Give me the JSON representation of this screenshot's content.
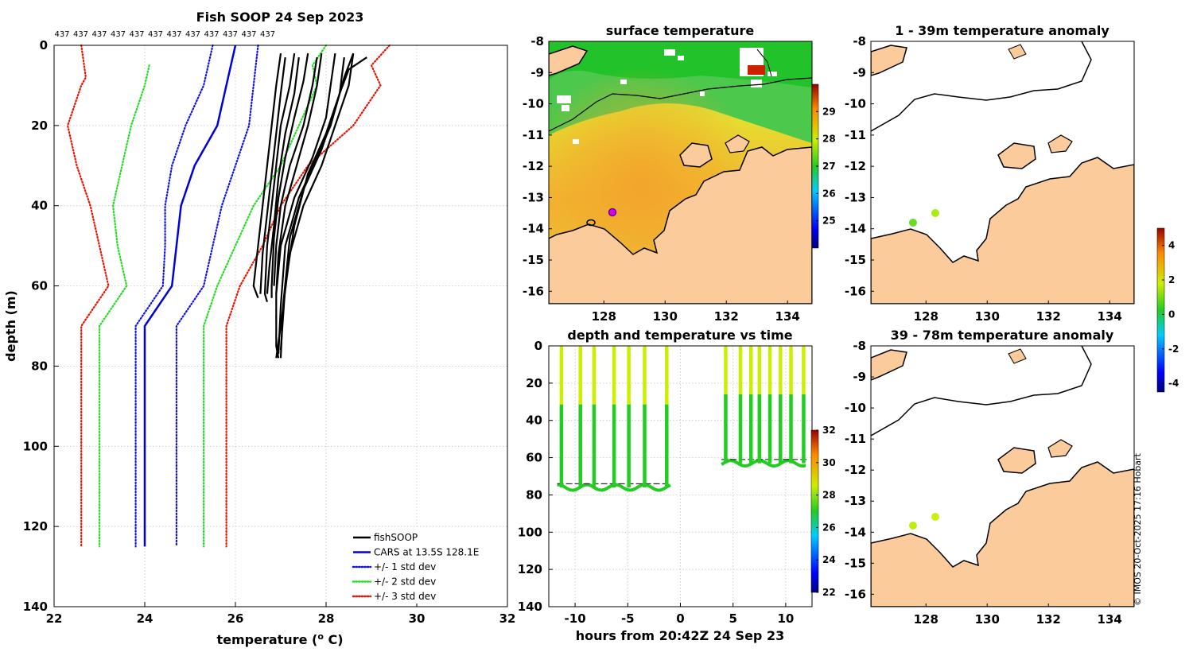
{
  "credit": "© IMOS 20-Oct-2025 17:16 Hobart",
  "colors": {
    "fishsoop": "#000000",
    "cars": "#0000dd",
    "std1": "#1010ee",
    "std2": "#22dd22",
    "std3": "#ee1100",
    "land": "#fbcb9b",
    "track_hot": "#ccee00",
    "track_cool": "#22cc22"
  },
  "chart_data": [
    {
      "id": "profile",
      "type": "line",
      "title": "Fish SOOP 24 Sep 2023",
      "xlabel": "temperature (o C)",
      "xlabel_main": "temperature (",
      "xlabel_sup": "o",
      "xlabel_end": " C)",
      "ylabel": "depth (m)",
      "xlim": [
        22,
        32
      ],
      "ylim": [
        0,
        140
      ],
      "y_reversed": true,
      "xticks": [
        "22",
        "24",
        "26",
        "28",
        "30",
        "32"
      ],
      "yticks": [
        "0",
        "20",
        "40",
        "60",
        "80",
        "100",
        "120",
        "140"
      ],
      "top_labels": [
        "437",
        "437",
        "437",
        "437",
        "437",
        "437",
        "437",
        "437",
        "437",
        "437",
        "437",
        "437"
      ],
      "legend": [
        {
          "label": "fishSOOP",
          "style": "solid",
          "color": "#000000"
        },
        {
          "label": "CARS at 13.5S 128.1E",
          "style": "solid",
          "color": "#0000dd"
        },
        {
          "label": "+/- 1 std dev",
          "style": "dotted",
          "color": "#1010ee"
        },
        {
          "label": "+/- 2 std dev",
          "style": "dotted",
          "color": "#22dd22"
        },
        {
          "label": "+/- 3 std dev",
          "style": "dotted",
          "color": "#ee1100"
        }
      ],
      "series": [
        {
          "name": "CARS at 13.5S 128.1E",
          "style": "solid",
          "color": "#0000dd",
          "points": [
            [
              26.0,
              0
            ],
            [
              25.8,
              10
            ],
            [
              25.6,
              20
            ],
            [
              25.1,
              30
            ],
            [
              24.8,
              40
            ],
            [
              24.7,
              50
            ],
            [
              24.6,
              60
            ],
            [
              24.0,
              70
            ],
            [
              24.0,
              80
            ],
            [
              24.0,
              100
            ],
            [
              24.0,
              125
            ]
          ]
        },
        {
          "name": "-1 std",
          "style": "dotted",
          "color": "#1010ee",
          "points": [
            [
              25.5,
              0
            ],
            [
              25.3,
              10
            ],
            [
              24.9,
              20
            ],
            [
              24.6,
              30
            ],
            [
              24.45,
              40
            ],
            [
              24.45,
              50
            ],
            [
              24.4,
              60
            ],
            [
              23.8,
              70
            ],
            [
              23.8,
              100
            ],
            [
              23.8,
              125
            ]
          ]
        },
        {
          "name": "+1 std",
          "style": "dotted",
          "color": "#1010ee",
          "points": [
            [
              26.5,
              0
            ],
            [
              26.4,
              10
            ],
            [
              26.3,
              20
            ],
            [
              26.0,
              30
            ],
            [
              25.7,
              40
            ],
            [
              25.5,
              50
            ],
            [
              25.3,
              60
            ],
            [
              24.7,
              70
            ],
            [
              24.7,
              100
            ],
            [
              24.7,
              125
            ]
          ]
        },
        {
          "name": "-2 std",
          "style": "dotted",
          "color": "#22dd22",
          "points": [
            [
              24.1,
              5
            ],
            [
              24.0,
              10
            ],
            [
              23.7,
              20
            ],
            [
              23.5,
              30
            ],
            [
              23.3,
              40
            ],
            [
              23.4,
              50
            ],
            [
              23.6,
              60
            ],
            [
              23.0,
              70
            ],
            [
              23.0,
              100
            ],
            [
              23.0,
              125
            ]
          ]
        },
        {
          "name": "+2 std",
          "style": "dotted",
          "color": "#22dd22",
          "points": [
            [
              28.0,
              0
            ],
            [
              27.7,
              5
            ],
            [
              27.8,
              10
            ],
            [
              27.4,
              20
            ],
            [
              27.0,
              30
            ],
            [
              26.4,
              40
            ],
            [
              26.0,
              50
            ],
            [
              25.6,
              60
            ],
            [
              25.3,
              70
            ],
            [
              25.3,
              100
            ],
            [
              25.3,
              125
            ]
          ]
        },
        {
          "name": "-3 std",
          "style": "dotted",
          "color": "#ee1100",
          "points": [
            [
              22.6,
              0
            ],
            [
              22.7,
              8
            ],
            [
              22.6,
              10
            ],
            [
              22.3,
              20
            ],
            [
              22.5,
              30
            ],
            [
              22.8,
              40
            ],
            [
              23.0,
              50
            ],
            [
              23.2,
              60
            ],
            [
              22.6,
              70
            ],
            [
              22.6,
              100
            ],
            [
              22.6,
              125
            ]
          ]
        },
        {
          "name": "+3 std",
          "style": "dotted",
          "color": "#ee1100",
          "points": [
            [
              29.4,
              0
            ],
            [
              29.0,
              5
            ],
            [
              29.2,
              10
            ],
            [
              28.6,
              20
            ],
            [
              27.6,
              30
            ],
            [
              27.0,
              40
            ],
            [
              26.6,
              50
            ],
            [
              26.1,
              60
            ],
            [
              25.8,
              70
            ],
            [
              25.8,
              100
            ],
            [
              25.8,
              125
            ]
          ]
        }
      ],
      "fishsoop_profiles": [
        [
          [
            27.0,
            2
          ],
          [
            26.9,
            10
          ],
          [
            26.8,
            20
          ],
          [
            26.7,
            30
          ],
          [
            26.6,
            40
          ],
          [
            26.5,
            50
          ],
          [
            26.4,
            60
          ],
          [
            26.5,
            63
          ]
        ],
        [
          [
            27.1,
            3
          ],
          [
            27.0,
            12
          ],
          [
            26.9,
            22
          ],
          [
            26.8,
            32
          ],
          [
            26.7,
            42
          ],
          [
            26.6,
            52
          ],
          [
            26.55,
            62
          ]
        ],
        [
          [
            27.3,
            2
          ],
          [
            27.2,
            10
          ],
          [
            27.0,
            20
          ],
          [
            26.9,
            30
          ],
          [
            26.8,
            40
          ],
          [
            26.7,
            50
          ],
          [
            26.65,
            62
          ],
          [
            26.7,
            64
          ]
        ],
        [
          [
            27.4,
            3
          ],
          [
            27.3,
            12
          ],
          [
            27.1,
            22
          ],
          [
            26.95,
            33
          ],
          [
            26.85,
            45
          ],
          [
            26.75,
            55
          ],
          [
            26.7,
            62
          ]
        ],
        [
          [
            27.6,
            2
          ],
          [
            27.5,
            9
          ],
          [
            27.3,
            18
          ],
          [
            27.1,
            28
          ],
          [
            26.95,
            38
          ],
          [
            26.85,
            48
          ],
          [
            26.8,
            60
          ],
          [
            26.8,
            63
          ]
        ],
        [
          [
            27.8,
            3
          ],
          [
            27.7,
            10
          ],
          [
            27.5,
            20
          ],
          [
            27.2,
            30
          ],
          [
            27.0,
            40
          ],
          [
            26.9,
            50
          ],
          [
            26.85,
            60
          ]
        ],
        [
          [
            27.9,
            2
          ],
          [
            27.8,
            10
          ],
          [
            27.6,
            20
          ],
          [
            27.35,
            30
          ],
          [
            27.1,
            40
          ],
          [
            26.95,
            52
          ],
          [
            26.9,
            62
          ]
        ],
        [
          [
            28.2,
            2
          ],
          [
            28.1,
            10
          ],
          [
            28.0,
            18
          ],
          [
            27.7,
            28
          ],
          [
            27.3,
            38
          ],
          [
            27.0,
            50
          ],
          [
            26.9,
            62
          ],
          [
            26.9,
            75
          ],
          [
            26.95,
            78
          ]
        ],
        [
          [
            28.4,
            3
          ],
          [
            28.3,
            12
          ],
          [
            28.1,
            20
          ],
          [
            27.8,
            28
          ],
          [
            27.4,
            38
          ],
          [
            27.1,
            50
          ],
          [
            27.0,
            65
          ],
          [
            26.95,
            77
          ]
        ],
        [
          [
            28.6,
            2
          ],
          [
            28.5,
            10
          ],
          [
            28.2,
            20
          ],
          [
            27.9,
            30
          ],
          [
            27.5,
            40
          ],
          [
            27.2,
            52
          ],
          [
            27.0,
            70
          ],
          [
            26.9,
            78
          ]
        ],
        [
          [
            28.9,
            3
          ],
          [
            28.5,
            6
          ],
          [
            28.3,
            12
          ],
          [
            28.0,
            22
          ],
          [
            27.6,
            32
          ],
          [
            27.3,
            45
          ],
          [
            27.1,
            60
          ],
          [
            27.0,
            76
          ]
        ],
        [
          [
            28.6,
            2
          ],
          [
            28.4,
            8
          ],
          [
            28.2,
            16
          ],
          [
            27.9,
            26
          ],
          [
            27.5,
            36
          ],
          [
            27.2,
            48
          ],
          [
            27.05,
            65
          ],
          [
            27.0,
            78
          ]
        ]
      ]
    },
    {
      "id": "sst-map",
      "type": "heatmap",
      "title": "surface temperature",
      "xticks": [
        "128",
        "130",
        "132",
        "134"
      ],
      "yticks": [
        "-8",
        "-9",
        "-10",
        "-11",
        "-12",
        "-13",
        "-14",
        "-15",
        "-16"
      ],
      "xlim": [
        126.2,
        134.8
      ],
      "ylim": [
        -16.4,
        -8
      ],
      "colorbar": {
        "ticks": [
          "29",
          "28",
          "27",
          "26",
          "25"
        ],
        "range": [
          24,
          30
        ]
      },
      "fishsoop_location": {
        "lon": 128.1,
        "lat": -13.5
      }
    },
    {
      "id": "depth-time",
      "type": "scatter",
      "title": "depth and temperature vs time",
      "xlabel": "hours from 20:42Z 24 Sep 23",
      "xlim": [
        -12.5,
        12.5
      ],
      "ylim": [
        0,
        140
      ],
      "xticks": [
        "-10",
        "-5",
        "0",
        "5",
        "10"
      ],
      "yticks": [
        "0",
        "20",
        "40",
        "60",
        "80",
        "100",
        "120",
        "140"
      ],
      "colorbar": {
        "ticks": [
          "32",
          "30",
          "28",
          "26",
          "24",
          "22"
        ],
        "range": [
          22,
          32
        ]
      },
      "casts_group1": {
        "times": [
          -11.3,
          -9.5,
          -8.2,
          -6.3,
          -4.9,
          -3.4,
          -1.3
        ],
        "max_depth": 75
      },
      "casts_group2": {
        "times": [
          4.3,
          5.7,
          6.7,
          7.5,
          8.5,
          9.5,
          10.5,
          11.7
        ],
        "max_depth": 62
      }
    },
    {
      "id": "anomaly-1-39",
      "type": "scatter",
      "title": "1 - 39m temperature anomaly",
      "xticks": [
        "128",
        "130",
        "132",
        "134"
      ],
      "yticks": [
        "-8",
        "-9",
        "-10",
        "-11",
        "-12",
        "-13",
        "-14",
        "-15",
        "-16"
      ],
      "points": [
        {
          "lon": 127.4,
          "lat": -13.85,
          "anomaly": 0.8
        },
        {
          "lon": 128.15,
          "lat": -13.55,
          "anomaly": 1.3
        }
      ]
    },
    {
      "id": "anomaly-39-78",
      "type": "scatter",
      "title": "39 - 78m temperature anomaly",
      "xticks": [
        "128",
        "130",
        "132",
        "134"
      ],
      "yticks": [
        "-8",
        "-9",
        "-10",
        "-11",
        "-12",
        "-13",
        "-14",
        "-15",
        "-16"
      ],
      "points": [
        {
          "lon": 127.4,
          "lat": -13.85,
          "anomaly": 1.4
        },
        {
          "lon": 128.15,
          "lat": -13.55,
          "anomaly": 1.6
        }
      ]
    },
    {
      "id": "anomaly-colorbar",
      "type": "heatmap",
      "colorbar": {
        "ticks": [
          "4",
          "2",
          "0",
          "-2",
          "-4"
        ],
        "range": [
          -4.5,
          5
        ]
      }
    }
  ]
}
